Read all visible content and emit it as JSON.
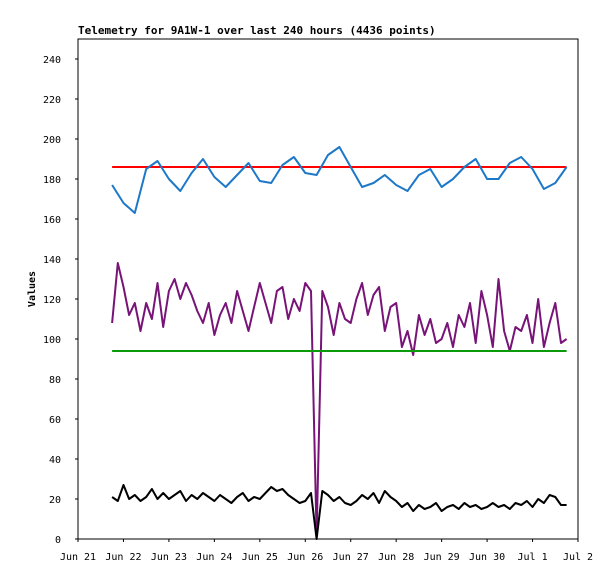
{
  "chart_data": {
    "type": "line",
    "title": "Telemetry for 9A1W-1 over last 240 hours (4436 points)",
    "xlabel": "",
    "ylabel": "Values",
    "ylim": [
      0,
      250
    ],
    "xlim": [
      "Jun 21",
      "Jul 2"
    ],
    "x_ticks": [
      "Jun 21",
      "Jun 22",
      "Jun 23",
      "Jun 24",
      "Jun 25",
      "Jun 26",
      "Jun 27",
      "Jun 28",
      "Jun 29",
      "Jun 30",
      "Jul 1",
      "Jul 2"
    ],
    "y_ticks": [
      0,
      20,
      40,
      60,
      80,
      100,
      120,
      140,
      160,
      180,
      200,
      220,
      240
    ],
    "grid": false,
    "legend": "none",
    "series": [
      {
        "color": "#ff0000",
        "x": [
          "Jun 21 18:00",
          "Jun 22 12:00",
          "Jun 23 12:00",
          "Jun 24 12:00",
          "Jun 25 12:00",
          "Jun 26 12:00",
          "Jun 27 12:00",
          "Jun 28 12:00",
          "Jun 29 12:00",
          "Jun 30 12:00",
          "Jul 1 12:00",
          "Jul 1 18:00"
        ],
        "values": [
          186,
          186,
          186,
          186,
          186,
          186,
          186,
          186,
          186,
          186,
          186,
          186
        ]
      },
      {
        "color": "#1e78c8",
        "x": [
          "Jun 21 18:00",
          "Jun 22 00:00",
          "Jun 22 06:00",
          "Jun 22 12:00",
          "Jun 22 18:00",
          "Jun 23 00:00",
          "Jun 23 06:00",
          "Jun 23 12:00",
          "Jun 23 18:00",
          "Jun 24 00:00",
          "Jun 24 06:00",
          "Jun 24 12:00",
          "Jun 24 18:00",
          "Jun 25 00:00",
          "Jun 25 06:00",
          "Jun 25 12:00",
          "Jun 25 18:00",
          "Jun 26 00:00",
          "Jun 26 06:00",
          "Jun 26 12:00",
          "Jun 26 18:00",
          "Jun 27 00:00",
          "Jun 27 06:00",
          "Jun 27 12:00",
          "Jun 27 18:00",
          "Jun 28 00:00",
          "Jun 28 06:00",
          "Jun 28 12:00",
          "Jun 28 18:00",
          "Jun 29 00:00",
          "Jun 29 06:00",
          "Jun 29 12:00",
          "Jun 29 18:00",
          "Jun 30 00:00",
          "Jun 30 06:00",
          "Jun 30 12:00",
          "Jun 30 18:00",
          "Jul 1 00:00",
          "Jul 1 06:00",
          "Jul 1 12:00",
          "Jul 1 18:00"
        ],
        "values": [
          177,
          168,
          163,
          185,
          189,
          180,
          174,
          183,
          190,
          181,
          176,
          182,
          188,
          179,
          178,
          187,
          191,
          183,
          182,
          192,
          196,
          186,
          176,
          178,
          182,
          177,
          174,
          182,
          185,
          176,
          180,
          186,
          190,
          180,
          180,
          188,
          191,
          185,
          175,
          178,
          186
        ]
      },
      {
        "color": "#781478",
        "x": [
          "Jun 21 18:00",
          "Jun 21 21:00",
          "Jun 22 00:00",
          "Jun 22 03:00",
          "Jun 22 06:00",
          "Jun 22 09:00",
          "Jun 22 12:00",
          "Jun 22 15:00",
          "Jun 22 18:00",
          "Jun 22 21:00",
          "Jun 23 00:00",
          "Jun 23 03:00",
          "Jun 23 06:00",
          "Jun 23 09:00",
          "Jun 23 12:00",
          "Jun 23 15:00",
          "Jun 23 18:00",
          "Jun 23 21:00",
          "Jun 24 00:00",
          "Jun 24 03:00",
          "Jun 24 06:00",
          "Jun 24 09:00",
          "Jun 24 12:00",
          "Jun 24 15:00",
          "Jun 24 18:00",
          "Jun 24 21:00",
          "Jun 25 00:00",
          "Jun 25 03:00",
          "Jun 25 06:00",
          "Jun 25 09:00",
          "Jun 25 12:00",
          "Jun 25 15:00",
          "Jun 25 18:00",
          "Jun 25 21:00",
          "Jun 26 00:00",
          "Jun 26 03:00",
          "Jun 26 06:00",
          "Jun 26 09:00",
          "Jun 26 12:00",
          "Jun 26 15:00",
          "Jun 26 18:00",
          "Jun 26 21:00",
          "Jun 27 00:00",
          "Jun 27 03:00",
          "Jun 27 06:00",
          "Jun 27 09:00",
          "Jun 27 12:00",
          "Jun 27 15:00",
          "Jun 27 18:00",
          "Jun 27 21:00",
          "Jun 28 00:00",
          "Jun 28 03:00",
          "Jun 28 06:00",
          "Jun 28 09:00",
          "Jun 28 12:00",
          "Jun 28 15:00",
          "Jun 28 18:00",
          "Jun 28 21:00",
          "Jun 29 00:00",
          "Jun 29 03:00",
          "Jun 29 06:00",
          "Jun 29 09:00",
          "Jun 29 12:00",
          "Jun 29 15:00",
          "Jun 29 18:00",
          "Jun 29 21:00",
          "Jun 30 00:00",
          "Jun 30 03:00",
          "Jun 30 06:00",
          "Jun 30 09:00",
          "Jun 30 12:00",
          "Jun 30 15:00",
          "Jun 30 18:00",
          "Jun 30 21:00",
          "Jul 1 00:00",
          "Jul 1 03:00",
          "Jul 1 06:00",
          "Jul 1 09:00",
          "Jul 1 12:00",
          "Jul 1 15:00",
          "Jul 1 18:00"
        ],
        "values": [
          108,
          138,
          126,
          112,
          118,
          104,
          118,
          110,
          128,
          106,
          124,
          130,
          120,
          128,
          122,
          114,
          108,
          118,
          102,
          112,
          118,
          108,
          124,
          114,
          104,
          116,
          128,
          118,
          108,
          124,
          126,
          110,
          120,
          114,
          128,
          124,
          2,
          124,
          116,
          102,
          118,
          110,
          108,
          120,
          128,
          112,
          122,
          126,
          104,
          116,
          118,
          96,
          104,
          92,
          112,
          102,
          110,
          98,
          100,
          108,
          96,
          112,
          106,
          118,
          98,
          124,
          112,
          96,
          130,
          104,
          94,
          106,
          104,
          112,
          98,
          120,
          96,
          108,
          118,
          98,
          100
        ]
      },
      {
        "color": "#0a9a0a",
        "x": [
          "Jun 21 18:00",
          "Jun 22 12:00",
          "Jun 23 12:00",
          "Jun 24 12:00",
          "Jun 25 12:00",
          "Jun 26 12:00",
          "Jun 27 12:00",
          "Jun 28 12:00",
          "Jun 29 12:00",
          "Jun 30 12:00",
          "Jul 1 12:00",
          "Jul 1 18:00"
        ],
        "values": [
          94,
          94,
          94,
          94,
          94,
          94,
          94,
          94,
          94,
          94,
          94,
          94
        ]
      },
      {
        "color": "#000000",
        "x": [
          "Jun 21 18:00",
          "Jun 21 21:00",
          "Jun 22 00:00",
          "Jun 22 03:00",
          "Jun 22 06:00",
          "Jun 22 09:00",
          "Jun 22 12:00",
          "Jun 22 15:00",
          "Jun 22 18:00",
          "Jun 22 21:00",
          "Jun 23 00:00",
          "Jun 23 03:00",
          "Jun 23 06:00",
          "Jun 23 09:00",
          "Jun 23 12:00",
          "Jun 23 15:00",
          "Jun 23 18:00",
          "Jun 23 21:00",
          "Jun 24 00:00",
          "Jun 24 03:00",
          "Jun 24 06:00",
          "Jun 24 09:00",
          "Jun 24 12:00",
          "Jun 24 15:00",
          "Jun 24 18:00",
          "Jun 24 21:00",
          "Jun 25 00:00",
          "Jun 25 03:00",
          "Jun 25 06:00",
          "Jun 25 09:00",
          "Jun 25 12:00",
          "Jun 25 15:00",
          "Jun 25 18:00",
          "Jun 25 21:00",
          "Jun 26 00:00",
          "Jun 26 03:00",
          "Jun 26 06:00",
          "Jun 26 09:00",
          "Jun 26 12:00",
          "Jun 26 15:00",
          "Jun 26 18:00",
          "Jun 26 21:00",
          "Jun 27 00:00",
          "Jun 27 03:00",
          "Jun 27 06:00",
          "Jun 27 09:00",
          "Jun 27 12:00",
          "Jun 27 15:00",
          "Jun 27 18:00",
          "Jun 27 21:00",
          "Jun 28 00:00",
          "Jun 28 03:00",
          "Jun 28 06:00",
          "Jun 28 09:00",
          "Jun 28 12:00",
          "Jun 28 15:00",
          "Jun 28 18:00",
          "Jun 28 21:00",
          "Jun 29 00:00",
          "Jun 29 03:00",
          "Jun 29 06:00",
          "Jun 29 09:00",
          "Jun 29 12:00",
          "Jun 29 15:00",
          "Jun 29 18:00",
          "Jun 29 21:00",
          "Jun 30 00:00",
          "Jun 30 03:00",
          "Jun 30 06:00",
          "Jun 30 09:00",
          "Jun 30 12:00",
          "Jun 30 15:00",
          "Jun 30 18:00",
          "Jun 30 21:00",
          "Jul 1 00:00",
          "Jul 1 03:00",
          "Jul 1 06:00",
          "Jul 1 09:00",
          "Jul 1 12:00",
          "Jul 1 15:00",
          "Jul 1 18:00"
        ],
        "values": [
          21,
          19,
          27,
          20,
          22,
          19,
          21,
          25,
          20,
          23,
          20,
          22,
          24,
          19,
          22,
          20,
          23,
          21,
          19,
          22,
          20,
          18,
          21,
          23,
          19,
          21,
          20,
          23,
          26,
          24,
          25,
          22,
          20,
          18,
          19,
          23,
          0,
          24,
          22,
          19,
          21,
          18,
          17,
          19,
          22,
          20,
          23,
          18,
          24,
          21,
          19,
          16,
          18,
          14,
          17,
          15,
          16,
          18,
          14,
          16,
          17,
          15,
          18,
          16,
          17,
          15,
          16,
          18,
          16,
          17,
          15,
          18,
          17,
          19,
          16,
          20,
          18,
          22,
          21,
          17,
          17
        ]
      }
    ]
  }
}
